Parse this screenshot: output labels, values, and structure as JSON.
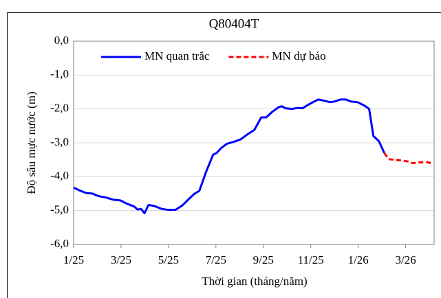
{
  "chart_data": {
    "type": "line",
    "title": "Q80404T",
    "x_label": "Thời gian (tháng/năm)",
    "y_label": "Độ sâu mực nước (m)",
    "xlim": [
      0,
      15.2
    ],
    "xticks": [
      {
        "value": 0,
        "label": "1/25"
      },
      {
        "value": 2,
        "label": "3/25"
      },
      {
        "value": 4,
        "label": "5/25"
      },
      {
        "value": 6,
        "label": "7/25"
      },
      {
        "value": 8,
        "label": "9/25"
      },
      {
        "value": 10,
        "label": "11/25"
      },
      {
        "value": 12,
        "label": "1/26"
      },
      {
        "value": 14,
        "label": "3/26"
      }
    ],
    "ylim": [
      -6,
      0
    ],
    "yticks": [
      {
        "value": 0,
        "label": "0,0"
      },
      {
        "value": -1,
        "label": "-1,0"
      },
      {
        "value": -2,
        "label": "-2,0"
      },
      {
        "value": -3,
        "label": "-3,0"
      },
      {
        "value": -4,
        "label": "-4,0"
      },
      {
        "value": -5,
        "label": "-5,0"
      },
      {
        "value": -6,
        "label": "-6,0"
      }
    ],
    "grid": true,
    "legend": "top",
    "series": [
      {
        "name": "MN quan trắc",
        "color": "#0000ff",
        "dash": false,
        "x": [
          0,
          0.23,
          0.52,
          0.81,
          0.96,
          1.1,
          1.39,
          1.68,
          1.97,
          2.26,
          2.55,
          2.7,
          2.84,
          2.99,
          3.16,
          3.42,
          3.71,
          4.0,
          4.29,
          4.58,
          4.87,
          5.1,
          5.3,
          5.59,
          5.88,
          6.03,
          6.23,
          6.46,
          6.75,
          7.04,
          7.33,
          7.62,
          7.91,
          8.12,
          8.35,
          8.64,
          8.78,
          8.93,
          9.22,
          9.42,
          9.65,
          9.88,
          10.09,
          10.32,
          10.52,
          10.81,
          11.01,
          11.25,
          11.48,
          11.68,
          11.97,
          12.26,
          12.46,
          12.64,
          12.87,
          13.1
        ],
        "values": [
          -4.32,
          -4.4,
          -4.48,
          -4.5,
          -4.55,
          -4.58,
          -4.62,
          -4.68,
          -4.7,
          -4.8,
          -4.88,
          -4.97,
          -4.95,
          -5.08,
          -4.83,
          -4.87,
          -4.95,
          -4.98,
          -4.98,
          -4.85,
          -4.65,
          -4.5,
          -4.42,
          -3.85,
          -3.35,
          -3.3,
          -3.15,
          -3.03,
          -2.97,
          -2.9,
          -2.75,
          -2.62,
          -2.25,
          -2.25,
          -2.1,
          -1.95,
          -1.92,
          -1.98,
          -2.0,
          -1.97,
          -1.98,
          -1.88,
          -1.8,
          -1.72,
          -1.75,
          -1.8,
          -1.78,
          -1.72,
          -1.72,
          -1.78,
          -1.8,
          -1.9,
          -2.0,
          -2.8,
          -2.95,
          -3.3
        ]
      },
      {
        "name": "MN dự báo",
        "color": "#ff0000",
        "dash": true,
        "x": [
          13.1,
          13.28,
          13.51,
          13.8,
          14.09,
          14.29,
          14.58,
          14.87,
          15.1
        ],
        "values": [
          -3.3,
          -3.48,
          -3.5,
          -3.52,
          -3.55,
          -3.6,
          -3.58,
          -3.57,
          -3.6
        ]
      }
    ]
  }
}
